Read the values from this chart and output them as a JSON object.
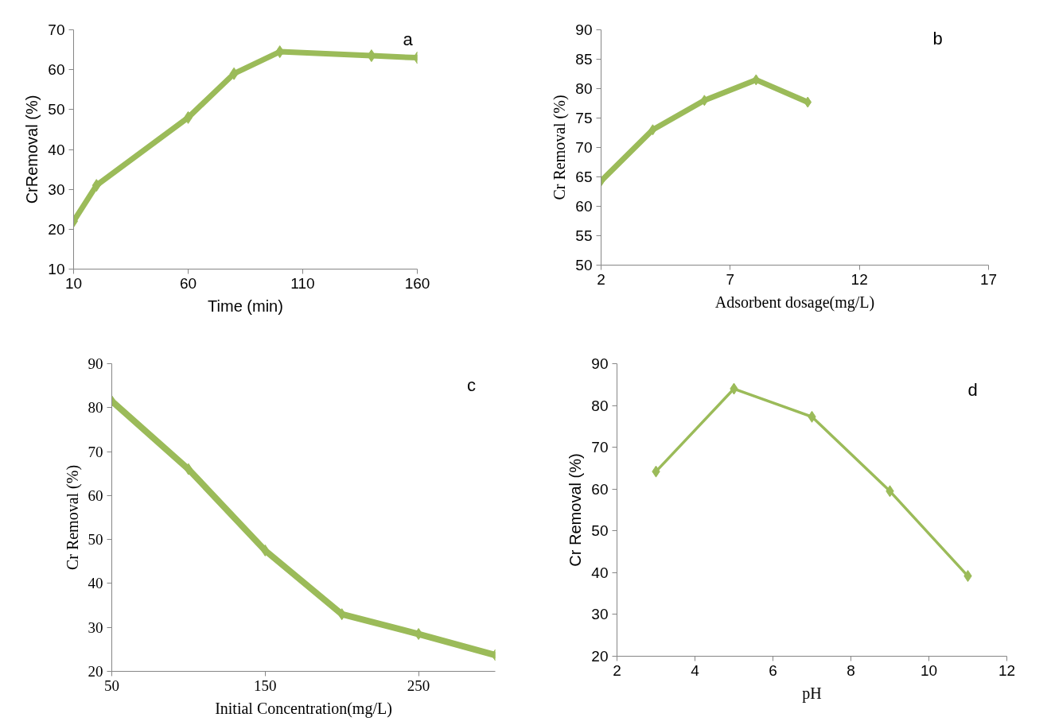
{
  "chart_data": [
    {
      "type": "line",
      "xlabel": "Time (min)",
      "ylabel": "CrRemoval (%)",
      "x": [
        10,
        20,
        60,
        80,
        100,
        140,
        160
      ],
      "series": [
        {
          "color": "#9bbb59",
          "values": [
            22,
            31,
            48,
            59,
            64.5,
            63.5,
            63
          ]
        }
      ],
      "xlim": [
        10,
        160
      ],
      "xticks": [
        10,
        60,
        110,
        160
      ],
      "ylim": [
        10,
        70
      ],
      "yticks": [
        10,
        20,
        30,
        40,
        50,
        60,
        70
      ],
      "marker": "diamond",
      "grid": false,
      "annotations": [
        "a"
      ]
    },
    {
      "type": "line",
      "xlabel": "Adsorbent dosage(mg/L)",
      "ylabel": "Cr Removal (%)",
      "x": [
        2,
        4,
        6,
        8,
        10
      ],
      "series": [
        {
          "color": "#9bbb59",
          "values": [
            64.3,
            73,
            78,
            81.5,
            77.7
          ]
        }
      ],
      "xlim": [
        2,
        17
      ],
      "xticks": [
        2,
        7,
        12,
        17
      ],
      "ylim": [
        50,
        90
      ],
      "yticks": [
        50,
        55,
        60,
        65,
        70,
        75,
        80,
        85,
        90
      ],
      "marker": "diamond",
      "grid": false,
      "annotations": [
        "b"
      ]
    },
    {
      "type": "line",
      "xlabel": "Initial Concentration(mg/L)",
      "ylabel": "Cr Removal (%)",
      "x": [
        50,
        100,
        150,
        200,
        250,
        300
      ],
      "series": [
        {
          "color": "#9bbb59",
          "values": [
            81.5,
            66,
            47.5,
            33,
            28.5,
            23.7
          ]
        }
      ],
      "xlim": [
        50,
        300
      ],
      "xticks": [
        50,
        150,
        250
      ],
      "ylim": [
        20,
        90
      ],
      "yticks": [
        20,
        30,
        40,
        50,
        60,
        70,
        80,
        90
      ],
      "marker": "diamond",
      "grid": false,
      "annotations": [
        "c"
      ]
    },
    {
      "type": "line",
      "xlabel": "pH",
      "ylabel": "Cr Removal (%)",
      "x": [
        3,
        5,
        7,
        9,
        11
      ],
      "series": [
        {
          "color": "#9bbb59",
          "values": [
            64.2,
            84,
            77.3,
            59.5,
            39.2
          ]
        }
      ],
      "xlim": [
        2,
        12
      ],
      "xticks": [
        2,
        4,
        6,
        8,
        10,
        12
      ],
      "ylim": [
        20,
        90
      ],
      "yticks": [
        20,
        30,
        40,
        50,
        60,
        70,
        80,
        90
      ],
      "marker": "diamond",
      "grid": false,
      "annotations": [
        "d"
      ]
    }
  ]
}
